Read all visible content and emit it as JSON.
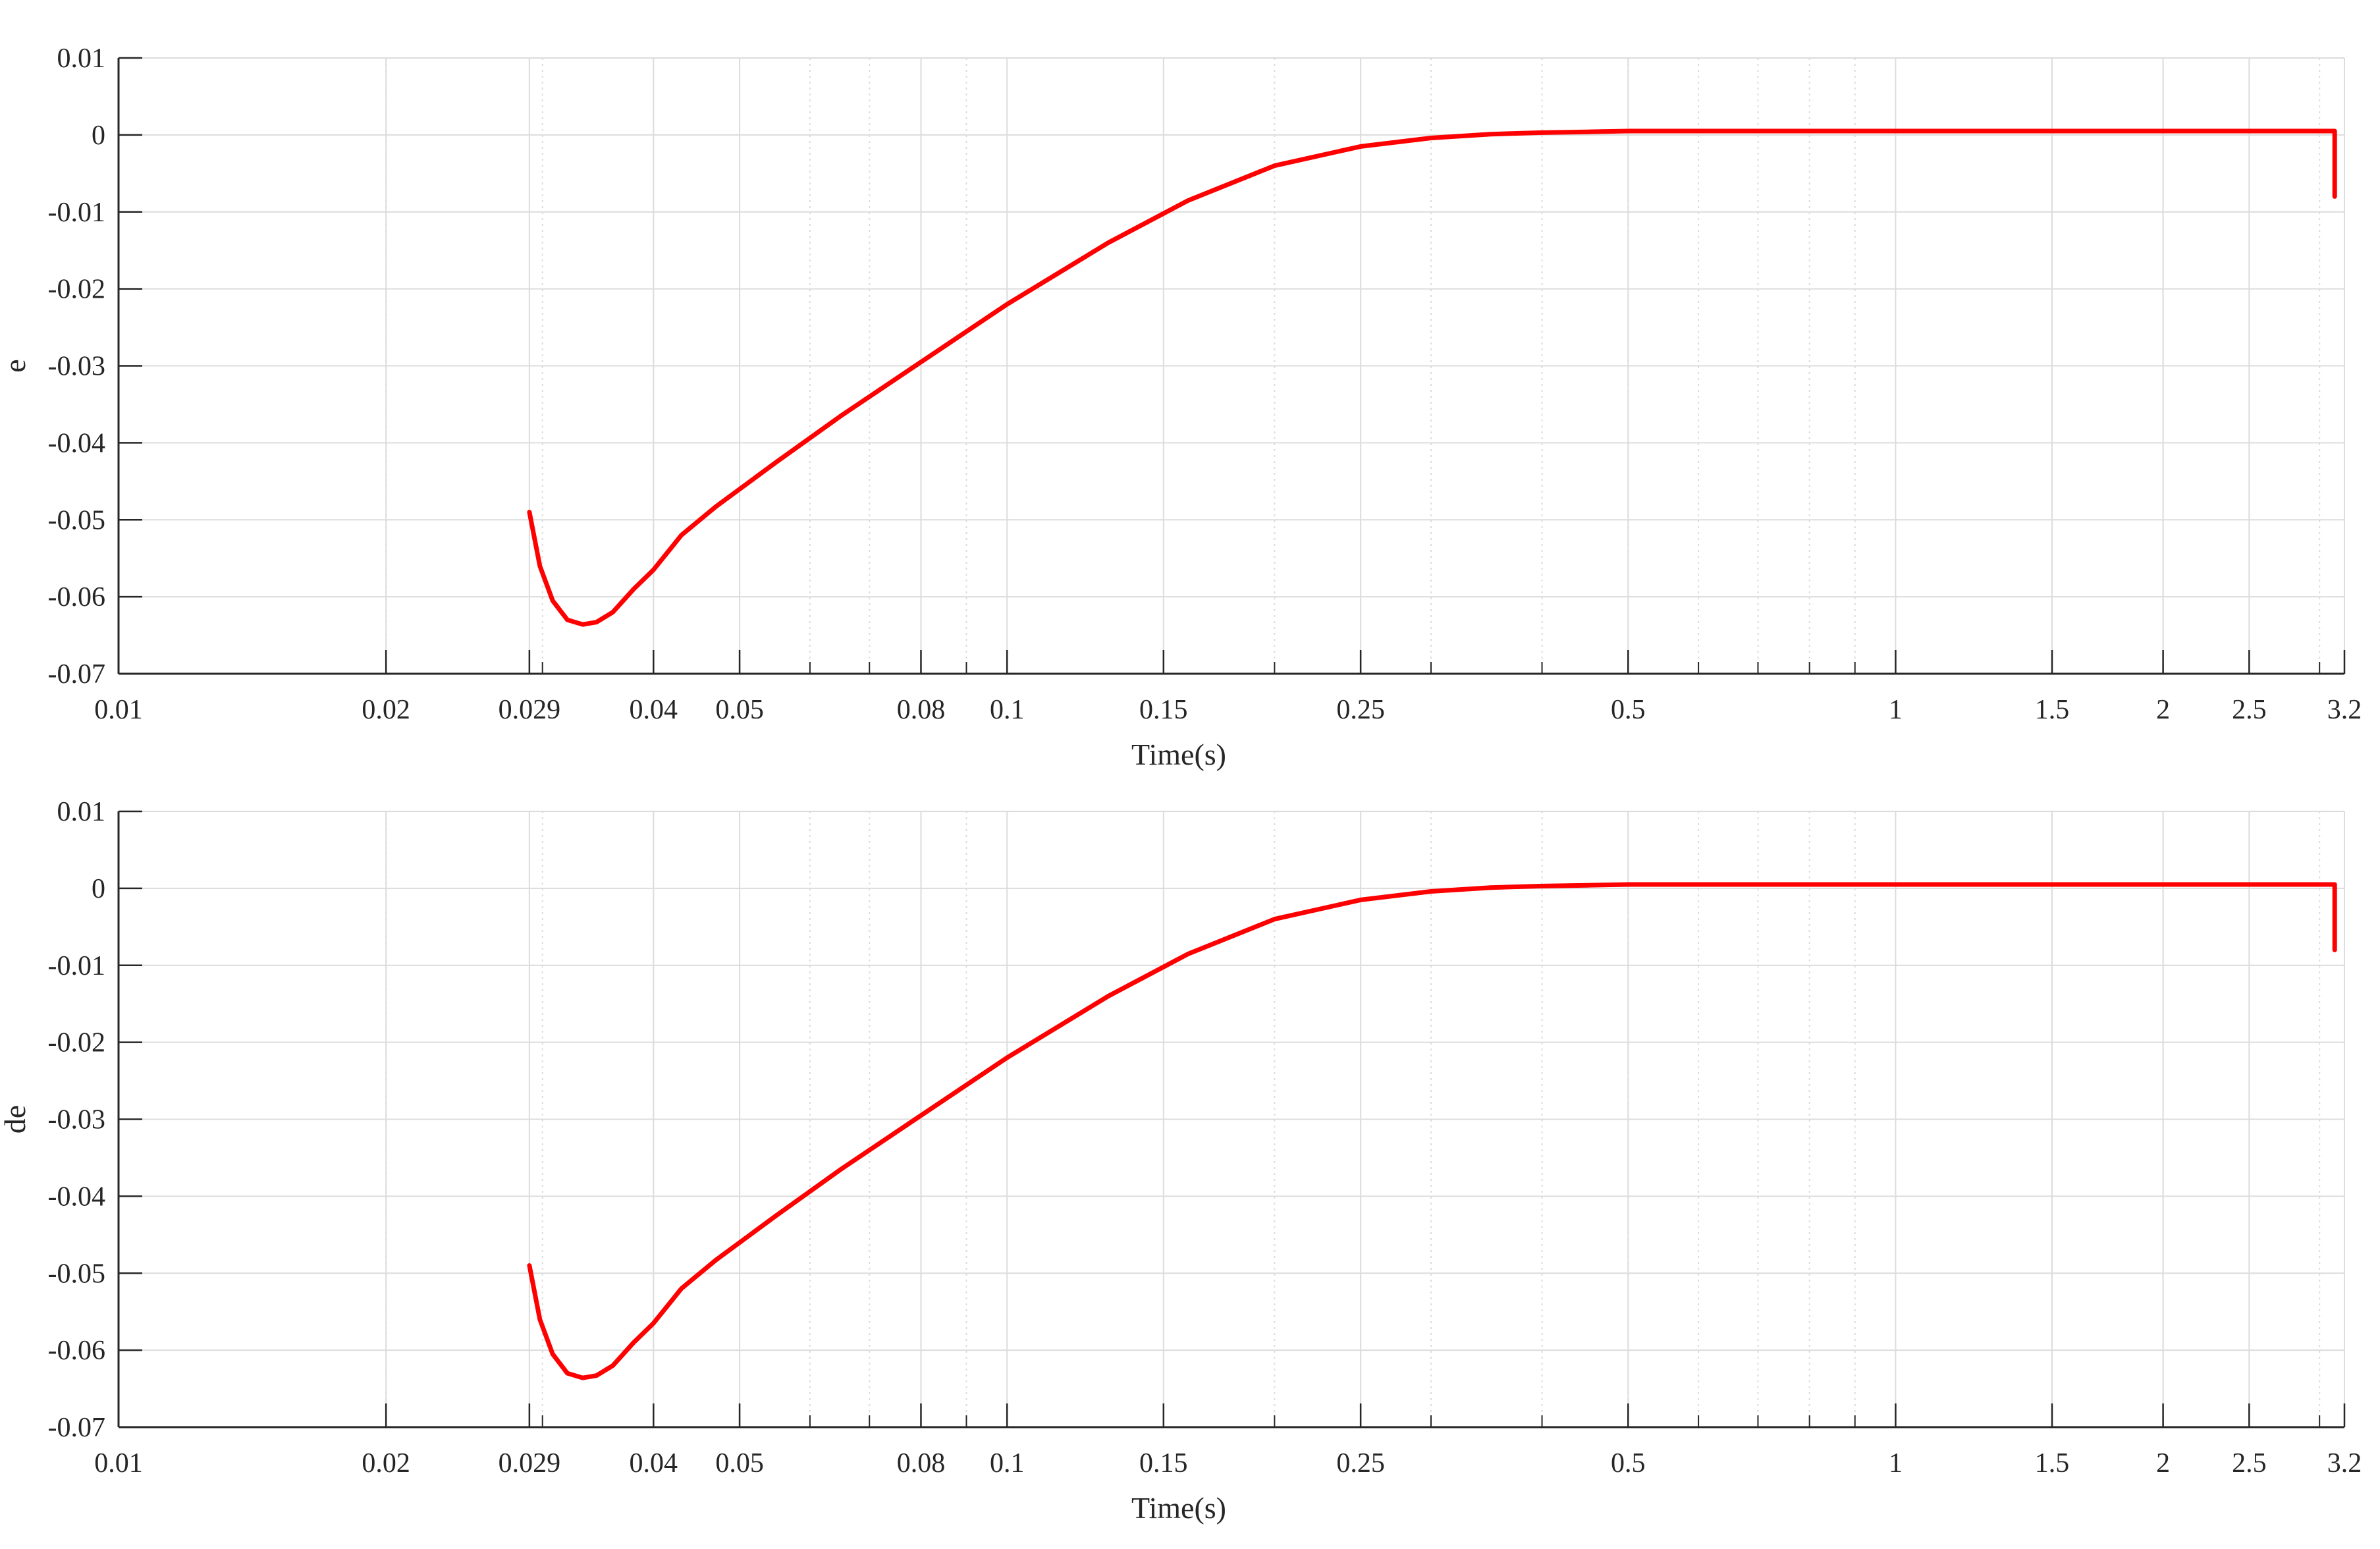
{
  "colors": {
    "line": "#ff0000",
    "axis": "#262626",
    "grid": "#dcdcdc",
    "background": "#ffffff"
  },
  "chart_data": [
    {
      "type": "line",
      "xscale": "log",
      "xlabel": "Time(s)",
      "ylabel": "e",
      "xlim": [
        0.01,
        3.2
      ],
      "ylim": [
        -0.07,
        0.01
      ],
      "grid": true,
      "x_ticks": [
        0.01,
        0.02,
        0.029,
        0.04,
        0.05,
        0.08,
        0.1,
        0.15,
        0.25,
        0.5,
        1,
        1.5,
        2,
        2.5,
        3.2
      ],
      "x_tick_labels": [
        "0.01",
        "0.02",
        "0.029",
        "0.04",
        "0.05",
        "0.08",
        "0.1",
        "0.15",
        "0.25",
        "0.5",
        "1",
        "1.5",
        "2",
        "2.5",
        "3.2"
      ],
      "y_ticks": [
        0.01,
        0,
        -0.01,
        -0.02,
        -0.03,
        -0.04,
        -0.05,
        -0.06,
        -0.07
      ],
      "y_tick_labels": [
        "0.01",
        "0",
        "-0.01",
        "-0.02",
        "-0.03",
        "-0.04",
        "-0.05",
        "-0.06",
        "-0.07"
      ],
      "series": [
        {
          "color": "#ff0000",
          "x": [
            0.029,
            0.0298,
            0.0308,
            0.032,
            0.0333,
            0.0345,
            0.036,
            0.038,
            0.04,
            0.043,
            0.047,
            0.055,
            0.065,
            0.08,
            0.1,
            0.13,
            0.16,
            0.2,
            0.25,
            0.3,
            0.35,
            0.4,
            0.45,
            0.5,
            0.6,
            0.8,
            1.0,
            1.5,
            2.0,
            2.5,
            3.0,
            3.12,
            3.12
          ],
          "y": [
            -0.049,
            -0.056,
            -0.0605,
            -0.063,
            -0.0636,
            -0.0633,
            -0.062,
            -0.059,
            -0.0565,
            -0.052,
            -0.0483,
            -0.0425,
            -0.0365,
            -0.0295,
            -0.022,
            -0.014,
            -0.0085,
            -0.004,
            -0.0015,
            -0.0004,
            0.0001,
            0.0003,
            0.0004,
            0.0005,
            0.0005,
            0.0005,
            0.0005,
            0.0005,
            0.0005,
            0.0005,
            0.0005,
            0.0005,
            -0.008
          ]
        }
      ]
    },
    {
      "type": "line",
      "xscale": "log",
      "xlabel": "Time(s)",
      "ylabel": "de",
      "xlim": [
        0.01,
        3.2
      ],
      "ylim": [
        -0.07,
        0.01
      ],
      "grid": true,
      "x_ticks": [
        0.01,
        0.02,
        0.029,
        0.04,
        0.05,
        0.08,
        0.1,
        0.15,
        0.25,
        0.5,
        1,
        1.5,
        2,
        2.5,
        3.2
      ],
      "x_tick_labels": [
        "0.01",
        "0.02",
        "0.029",
        "0.04",
        "0.05",
        "0.08",
        "0.1",
        "0.15",
        "0.25",
        "0.5",
        "1",
        "1.5",
        "2",
        "2.5",
        "3.2"
      ],
      "y_ticks": [
        0.01,
        0,
        -0.01,
        -0.02,
        -0.03,
        -0.04,
        -0.05,
        -0.06,
        -0.07
      ],
      "y_tick_labels": [
        "0.01",
        "0",
        "-0.01",
        "-0.02",
        "-0.03",
        "-0.04",
        "-0.05",
        "-0.06",
        "-0.07"
      ],
      "series": [
        {
          "color": "#ff0000",
          "x": [
            0.029,
            0.0298,
            0.0308,
            0.032,
            0.0333,
            0.0345,
            0.036,
            0.038,
            0.04,
            0.043,
            0.047,
            0.055,
            0.065,
            0.08,
            0.1,
            0.13,
            0.16,
            0.2,
            0.25,
            0.3,
            0.35,
            0.4,
            0.45,
            0.5,
            0.6,
            0.8,
            1.0,
            1.5,
            2.0,
            2.5,
            3.0,
            3.12,
            3.12
          ],
          "y": [
            -0.049,
            -0.056,
            -0.0605,
            -0.063,
            -0.0636,
            -0.0633,
            -0.062,
            -0.059,
            -0.0565,
            -0.052,
            -0.0483,
            -0.0425,
            -0.0365,
            -0.0295,
            -0.022,
            -0.014,
            -0.0085,
            -0.004,
            -0.0015,
            -0.0004,
            0.0001,
            0.0003,
            0.0004,
            0.0005,
            0.0005,
            0.0005,
            0.0005,
            0.0005,
            0.0005,
            0.0005,
            0.0005,
            0.0005,
            -0.008
          ]
        }
      ]
    }
  ]
}
